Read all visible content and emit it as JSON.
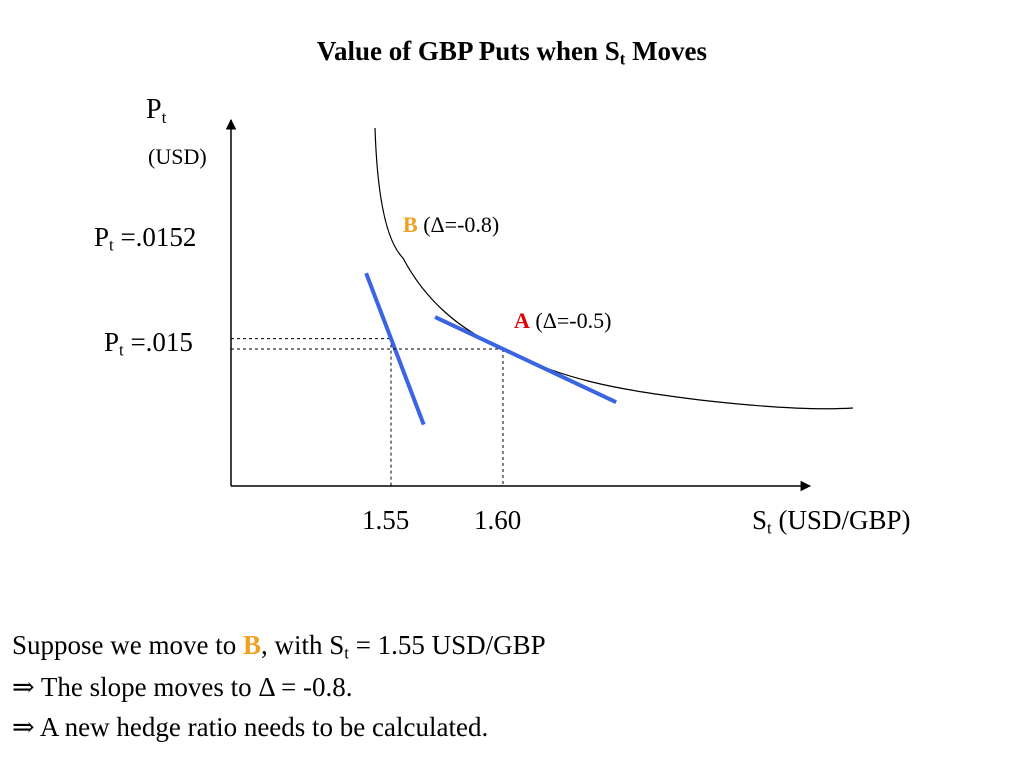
{
  "title": {
    "main": "Value of GBP Puts when S",
    "sub": "t",
    "tail": " Moves"
  },
  "chart_data": {
    "type": "line",
    "x_label": {
      "sym": "S",
      "sub": "t",
      "unit": " (USD/GBP)"
    },
    "y_label": {
      "sym": "P",
      "sub": "t",
      "unit": "(USD)"
    },
    "x_ticks": [
      {
        "label": "1.55",
        "value": 1.55
      },
      {
        "label": "1.60",
        "value": 1.6
      }
    ],
    "y_ticks": [
      {
        "sym": "P",
        "sub": "t",
        "text": " =.0152",
        "value": 0.0152
      },
      {
        "sym": "P",
        "sub": "t",
        "text": " =.015",
        "value": 0.015
      }
    ],
    "points": [
      {
        "id": "B",
        "letter": "B",
        "delta_text": " (Δ=-0.8)",
        "x": 1.55,
        "y": 0.0152,
        "delta": -0.8,
        "color": "#f0a020"
      },
      {
        "id": "A",
        "letter": "A",
        "delta_text": " (Δ=-0.5)",
        "x": 1.6,
        "y": 0.015,
        "delta": -0.5,
        "color": "#e00000"
      }
    ],
    "tangent_color": "#3a64e0",
    "curve_color": "#000000"
  },
  "footer": {
    "line1": {
      "pre": "Suppose we move to ",
      "bold": "B",
      "mid": ", with S",
      "sub": "t",
      "post": " = 1.55 USD/GBP"
    },
    "line2": "⇒ The slope moves to Δ = -0.8.",
    "line3": "⇒ A new hedge ratio needs to be calculated."
  }
}
